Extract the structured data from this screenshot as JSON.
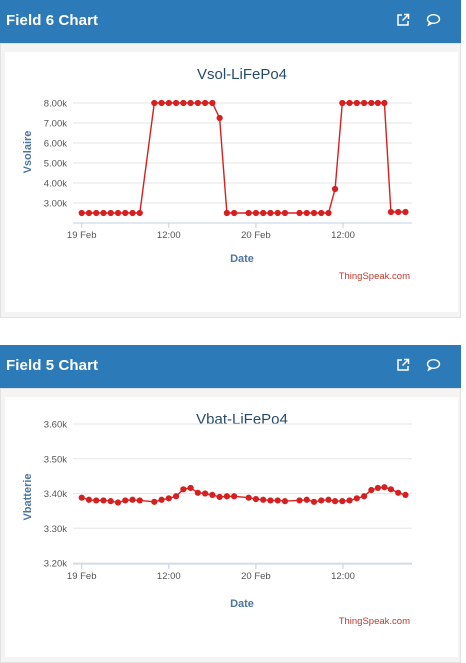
{
  "panels": [
    {
      "header": "Field 6 Chart",
      "icons": {
        "open": "external-link-icon",
        "comment": "comment-icon"
      },
      "chart_data": {
        "type": "line",
        "title": "Vsol-LiFePo4",
        "xlabel": "Date",
        "ylabel": "Vsolaire",
        "credit": "ThingSpeak.com",
        "x_tick_labels": [
          "19 Feb",
          "12:00",
          "20 Feb",
          "12:00"
        ],
        "x_tick_positions": [
          0,
          12,
          24,
          36
        ],
        "y_tick_labels": [
          "3.00k",
          "4.00k",
          "5.00k",
          "6.00k",
          "7.00k",
          "8.00k"
        ],
        "y_tick_values": [
          3000,
          4000,
          5000,
          6000,
          7000,
          8000
        ],
        "ylim": [
          2050,
          8700
        ],
        "xlim": [
          -1.2,
          45.5
        ],
        "color": "#d62020",
        "x": [
          0,
          1,
          2,
          3,
          4,
          5,
          6,
          7,
          8,
          10,
          11,
          12,
          13,
          14,
          15,
          16,
          17,
          18,
          19,
          20,
          21,
          23,
          24,
          25,
          26,
          27,
          28,
          30,
          31,
          32,
          33,
          34,
          34.9,
          35.9,
          36.9,
          37.9,
          38.9,
          39.9,
          40.8,
          41.7,
          42.6,
          43.6,
          44.6
        ],
        "y": [
          2500,
          2500,
          2500,
          2500,
          2500,
          2500,
          2500,
          2500,
          2500,
          8000,
          8000,
          8000,
          8000,
          8000,
          8000,
          8000,
          8000,
          8000,
          7250,
          2500,
          2500,
          2500,
          2500,
          2500,
          2500,
          2500,
          2500,
          2500,
          2500,
          2500,
          2500,
          2500,
          3700,
          8000,
          8000,
          8000,
          8000,
          8000,
          8000,
          8000,
          2550,
          2550,
          2550
        ]
      }
    },
    {
      "header": "Field 5 Chart",
      "icons": {
        "open": "external-link-icon",
        "comment": "comment-icon"
      },
      "chart_data": {
        "type": "line",
        "title": "Vbat-LiFePo4",
        "xlabel": "Date",
        "ylabel": "Vbatterie",
        "credit": "ThingSpeak.com",
        "x_tick_labels": [
          "19 Feb",
          "12:00",
          "20 Feb",
          "12:00"
        ],
        "x_tick_positions": [
          0,
          12,
          24,
          36
        ],
        "y_tick_labels": [
          "3.20k",
          "3.30k",
          "3.40k",
          "3.50k",
          "3.60k"
        ],
        "y_tick_values": [
          3200,
          3300,
          3400,
          3500,
          3600
        ],
        "ylim": [
          3200,
          3600
        ],
        "xlim": [
          -1.2,
          45.5
        ],
        "color": "#d62020",
        "x": [
          0,
          1,
          2,
          3,
          4,
          5,
          6,
          7,
          8,
          10,
          11,
          12,
          13,
          14,
          15,
          16,
          17,
          18,
          19,
          20,
          21,
          23,
          24,
          25,
          26,
          27,
          28,
          30,
          31,
          32,
          33,
          34,
          34.9,
          35.9,
          36.9,
          37.9,
          38.9,
          39.9,
          40.8,
          41.7,
          42.6,
          43.6,
          44.6
        ],
        "y": [
          3388,
          3382,
          3380,
          3380,
          3378,
          3374,
          3380,
          3382,
          3380,
          3376,
          3382,
          3386,
          3392,
          3412,
          3416,
          3402,
          3400,
          3396,
          3390,
          3392,
          3392,
          3388,
          3384,
          3382,
          3380,
          3380,
          3378,
          3380,
          3382,
          3376,
          3380,
          3382,
          3378,
          3378,
          3380,
          3386,
          3392,
          3410,
          3416,
          3418,
          3412,
          3402,
          3396
        ]
      }
    }
  ]
}
